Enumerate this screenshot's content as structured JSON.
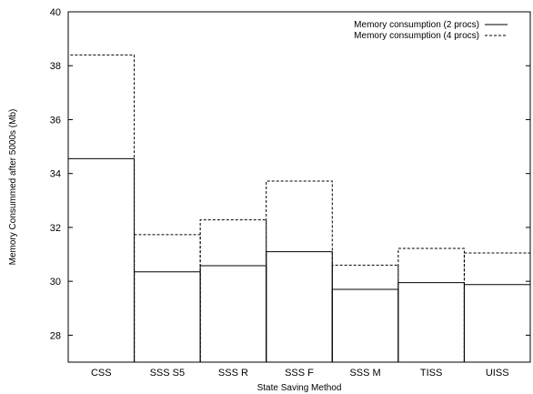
{
  "chart_data": {
    "type": "bar",
    "xlabel": "State Saving Method",
    "ylabel": "Memory Consummed after 5000s (Mb)",
    "categories": [
      "CSS",
      "SSS S5",
      "SSS R",
      "SSS F",
      "SSS M",
      "TISS",
      "UISS"
    ],
    "ylim": [
      27,
      40
    ],
    "yticks": [
      28,
      30,
      32,
      34,
      36,
      38,
      40
    ],
    "legend_position": "top-right",
    "grid": false,
    "series": [
      {
        "name": "Memory consumption (2 procs)",
        "line_style": "solid",
        "values": [
          34.55,
          30.35,
          30.58,
          31.1,
          29.7,
          29.95,
          29.88
        ]
      },
      {
        "name": "Memory consumption (4 procs)",
        "line_style": "dashed",
        "values": [
          38.4,
          31.73,
          32.28,
          33.72,
          30.6,
          31.22,
          31.05
        ]
      }
    ]
  }
}
